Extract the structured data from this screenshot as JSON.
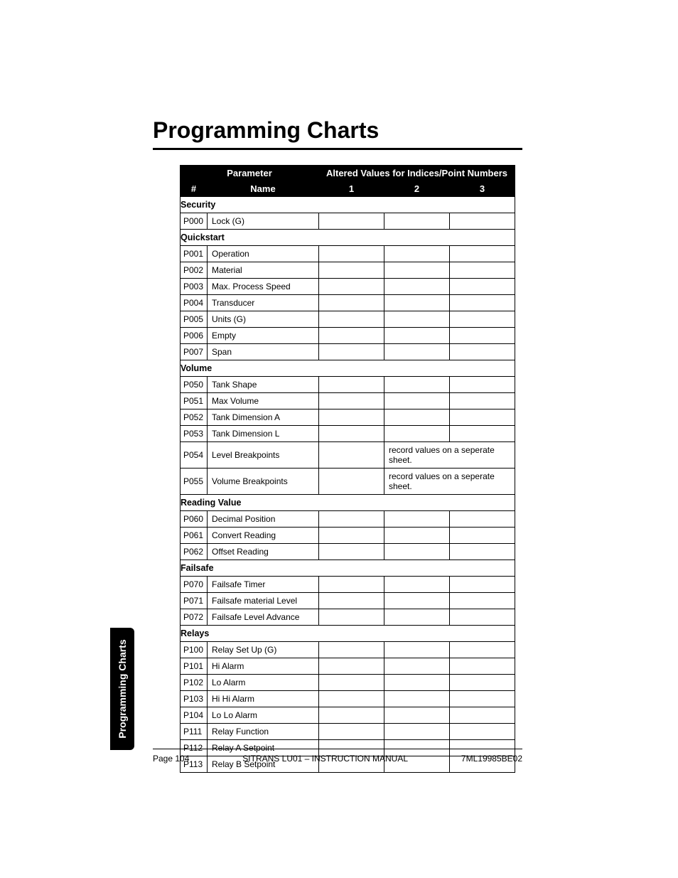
{
  "title": "Programming Charts",
  "side_tab": "Programming Charts",
  "table": {
    "header": {
      "parameter": "Parameter",
      "altered": "Altered Values for Indices/Point Numbers",
      "num": "#",
      "name": "Name",
      "c1": "1",
      "c2": "2",
      "c3": "3"
    },
    "sections": [
      {
        "label": "Security",
        "rows": [
          {
            "num": "P000",
            "name": "Lock (G)"
          }
        ]
      },
      {
        "label": "Quickstart",
        "rows": [
          {
            "num": "P001",
            "name": "Operation"
          },
          {
            "num": "P002",
            "name": "Material"
          },
          {
            "num": "P003",
            "name": "Max. Process Speed"
          },
          {
            "num": "P004",
            "name": "Transducer"
          },
          {
            "num": "P005",
            "name": "Units (G)"
          },
          {
            "num": "P006",
            "name": "Empty"
          },
          {
            "num": "P007",
            "name": "Span"
          }
        ]
      },
      {
        "label": "Volume",
        "rows": [
          {
            "num": "P050",
            "name": "Tank Shape"
          },
          {
            "num": "P051",
            "name": "Max Volume"
          },
          {
            "num": "P052",
            "name": "Tank Dimension A"
          },
          {
            "num": "P053",
            "name": "Tank Dimension L"
          },
          {
            "num": "P054",
            "name": "Level Breakpoints",
            "note": "record values on a seperate sheet."
          },
          {
            "num": "P055",
            "name": "Volume Breakpoints",
            "note": "record values on a seperate sheet."
          }
        ]
      },
      {
        "label": "Reading Value",
        "rows": [
          {
            "num": "P060",
            "name": "Decimal Position"
          },
          {
            "num": "P061",
            "name": "Convert Reading"
          },
          {
            "num": "P062",
            "name": "Offset Reading"
          }
        ]
      },
      {
        "label": "Failsafe",
        "rows": [
          {
            "num": "P070",
            "name": "Failsafe Timer"
          },
          {
            "num": "P071",
            "name": "Failsafe material Level"
          },
          {
            "num": "P072",
            "name": "Failsafe Level Advance"
          }
        ]
      },
      {
        "label": "Relays",
        "rows": [
          {
            "num": "P100",
            "name": "Relay Set Up (G)"
          },
          {
            "num": "P101",
            "name": "Hi Alarm"
          },
          {
            "num": "P102",
            "name": "Lo Alarm"
          },
          {
            "num": "P103",
            "name": "Hi Hi Alarm"
          },
          {
            "num": "P104",
            "name": "Lo Lo Alarm"
          },
          {
            "num": "P111",
            "name": "Relay Function"
          },
          {
            "num": "P112",
            "name": "Relay A Setpoint"
          },
          {
            "num": "P113",
            "name": "Relay B Setpoint"
          }
        ]
      }
    ]
  },
  "footer": {
    "left": "Page 104",
    "center": "SITRANS LU01 – INSTRUCTION MANUAL",
    "right": "7ML19985BE02"
  }
}
